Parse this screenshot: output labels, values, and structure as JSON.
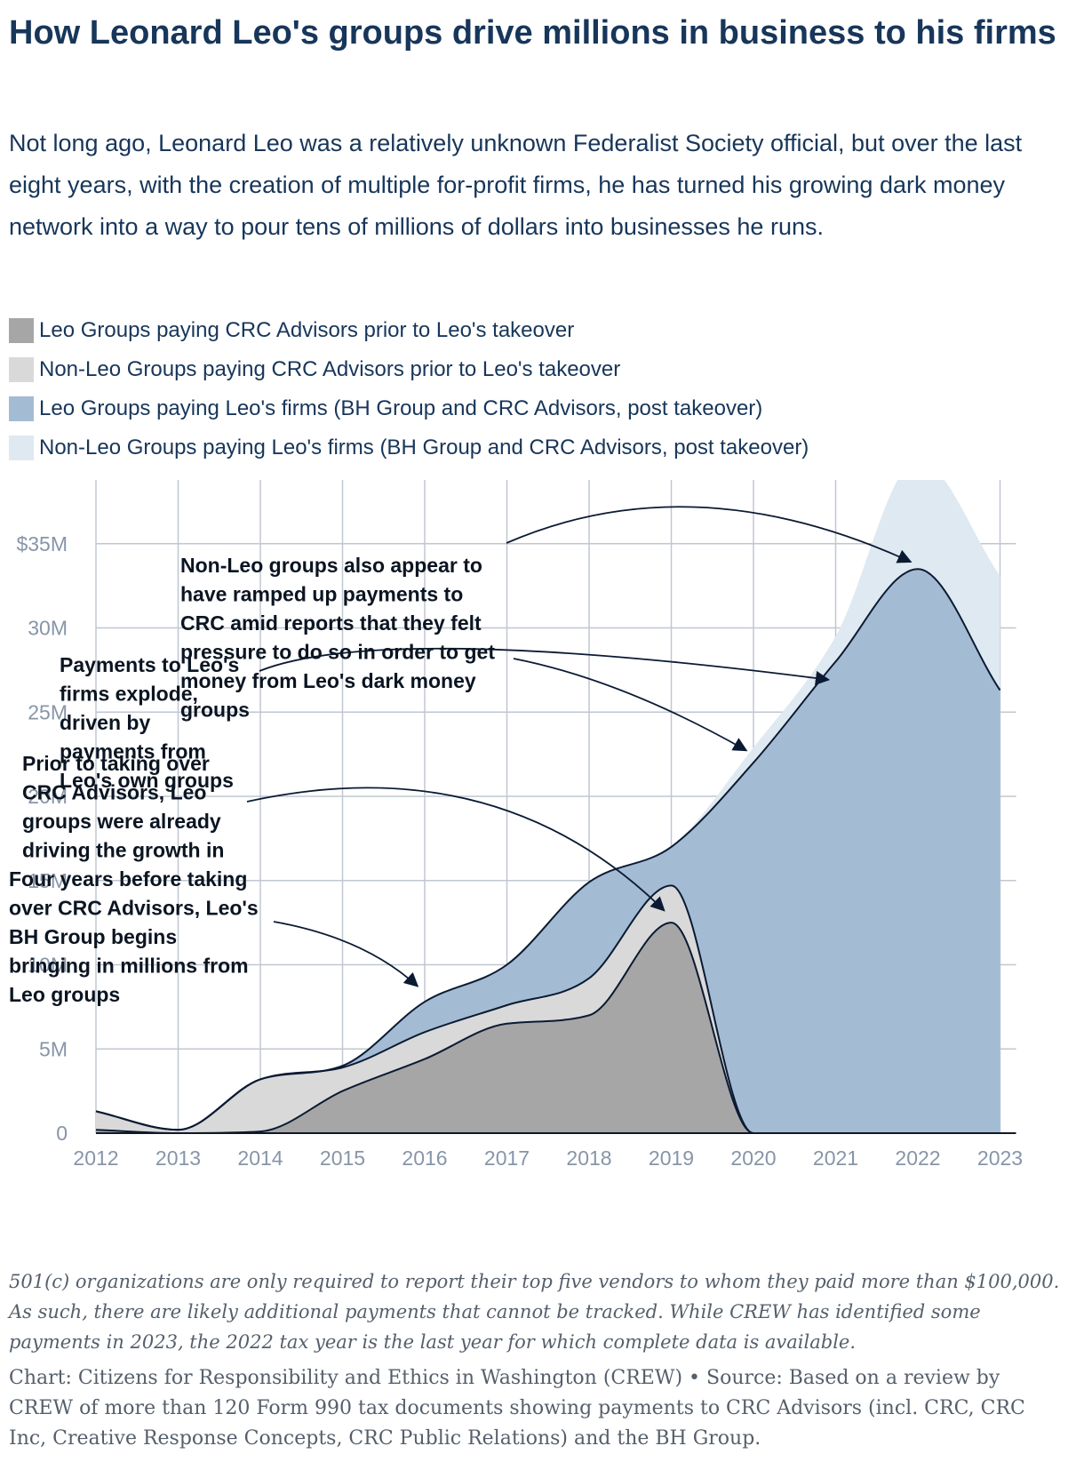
{
  "title": "How Leonard Leo's groups drive millions in business to his firms",
  "subtitle": "Not long ago, Leonard Leo was a relatively unknown Federalist Society official, but over the last eight years, with the creation of multiple for-profit firms, he has turned his growing dark money network into a way to pour tens of millions of dollars into businesses he runs.",
  "legend": [
    {
      "label": "Leo Groups paying CRC Advisors prior to Leo's takeover",
      "color": "#a6a6a6"
    },
    {
      "label": "Non-Leo Groups paying CRC Advisors prior to Leo's takeover",
      "color": "#d9d9d9"
    },
    {
      "label": "Leo Groups paying Leo's firms (BH Group and CRC Advisors, post takeover)",
      "color": "#a3bcd3"
    },
    {
      "label": "Non-Leo Groups paying Leo's firms (BH Group and CRC Advisors, post takeover)",
      "color": "#dfe9f1"
    }
  ],
  "chart_data": {
    "type": "area",
    "stacking": "stacked",
    "categories": [
      "2012",
      "2013",
      "2014",
      "2015",
      "2016",
      "2017",
      "2018",
      "2019",
      "2020",
      "2021",
      "2022",
      "2023"
    ],
    "y_tick_labels": [
      "0",
      "5M",
      "10M",
      "15M",
      "20M",
      "25M",
      "30M",
      "$35M"
    ],
    "ylim": [
      0,
      40
    ],
    "y_unit": "millions of dollars",
    "series": [
      {
        "name": "Leo Groups paying CRC Advisors prior to Leo's takeover",
        "color": "#a6a6a6",
        "values": [
          0.2,
          0,
          0.1,
          2.5,
          4.4,
          6.5,
          7,
          12.5,
          0,
          0,
          0,
          0
        ]
      },
      {
        "name": "Non-Leo Groups paying CRC Advisors prior to Leo's takeover",
        "color": "#d9d9d9",
        "values": [
          1.1,
          0.2,
          3.1,
          1.4,
          1.6,
          1.1,
          2.2,
          2.2,
          0,
          0,
          0,
          0
        ]
      },
      {
        "name": "Leo Groups paying Leo's firms (BH Group and CRC Advisors, post takeover)",
        "color": "#a3bcd3",
        "values": [
          0,
          0,
          0,
          0.1,
          1.8,
          2.4,
          5.7,
          2.3,
          22,
          28,
          33.5,
          26.3
        ]
      },
      {
        "name": "Non-Leo Groups paying Leo's firms (BH Group and CRC Advisors, post takeover)",
        "color": "#dfe9f1",
        "values": [
          0,
          0,
          0,
          0,
          0,
          0,
          0,
          0,
          0.9,
          1.5,
          6.5,
          6.8
        ]
      }
    ],
    "annotations": [
      {
        "id": "non-leo-ramp",
        "text": "Non-Leo groups also appear to have ramped up payments to CRC amid reports that they felt pressure to do so in order to get money from Leo's dark money groups",
        "lines": [
          "Non-Leo groups also appear to",
          "have ramped up payments to",
          "CRC amid reports that they felt",
          "pressure to do so in order to get",
          "money from Leo's dark money",
          "groups"
        ],
        "targets": [
          [
            2022,
            33.5
          ],
          [
            2020,
            22.3
          ]
        ]
      },
      {
        "id": "payments-explode",
        "text": "Payments to Leo's firms explode, driven by payments from Leo's own groups",
        "lines": [
          "Payments to Leo's",
          "firms explode,",
          "driven by",
          "payments from",
          "Leo's own groups"
        ],
        "targets": [
          [
            2021,
            26.5
          ]
        ]
      },
      {
        "id": "prior-takeover",
        "text": "Prior to taking over CRC Advisors, Leo groups were already driving the growth in",
        "lines": [
          "Prior to taking over",
          "CRC Advisors, Leo",
          "groups were already",
          "driving the growth in"
        ],
        "targets": [
          [
            2019,
            12.8
          ]
        ]
      },
      {
        "id": "bh-group",
        "text": "Four years before taking over CRC Advisors, Leo's BH Group begins bringing in millions from Leo groups",
        "lines": [
          "Four years before taking",
          "over CRC Advisors, Leo's",
          "BH Group begins",
          "bringing in millions from",
          "Leo groups"
        ],
        "targets": [
          [
            2016,
            8.3
          ]
        ]
      }
    ]
  },
  "notes": "501(c) organizations are only required to report their top five vendors to whom they paid more than $100,000. As such, there are likely additional payments that cannot be tracked. While CREW has identified some payments in 2023, the 2022 tax year is the last year for which complete data is available.",
  "source": "Chart: Citizens for Responsibility and Ethics in Washington (CREW) • Source: Based on a review by CREW of more than 120 Form 990 tax documents showing payments to CRC Advisors (incl. CRC, CRC Inc, Creative Response Concepts, CRC Public Relations) and the BH Group."
}
